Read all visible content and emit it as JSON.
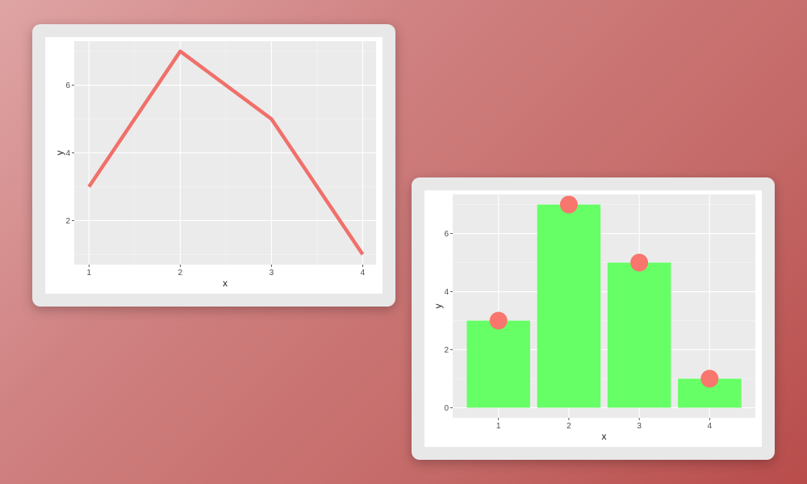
{
  "chart_data": [
    {
      "type": "line",
      "x": [
        1,
        2,
        3,
        4
      ],
      "values": [
        3,
        7,
        5,
        1
      ],
      "xlabel": "x",
      "ylabel": "y",
      "xticks": [
        "1",
        "2",
        "3",
        "4"
      ],
      "yticks": [
        "2",
        "4",
        "6"
      ],
      "xlim": [
        0.98,
        4.02
      ],
      "ylim": [
        0.7,
        7.3
      ],
      "grid": true,
      "colors": {
        "line": "#f0706a",
        "panel": "#ebebeb",
        "grid": "#ffffff"
      }
    },
    {
      "type": "bar",
      "categories": [
        "1",
        "2",
        "3",
        "4"
      ],
      "values": [
        3,
        7,
        5,
        1
      ],
      "points": [
        3,
        7,
        5,
        1
      ],
      "xlabel": "x",
      "ylabel": "y",
      "yticks": [
        "0",
        "2",
        "4",
        "6"
      ],
      "ylim": [
        -0.35,
        7.35
      ],
      "grid": true,
      "colors": {
        "bar": "#66ff66",
        "point": "#f8766d",
        "panel": "#ebebeb",
        "grid": "#ffffff"
      }
    }
  ]
}
